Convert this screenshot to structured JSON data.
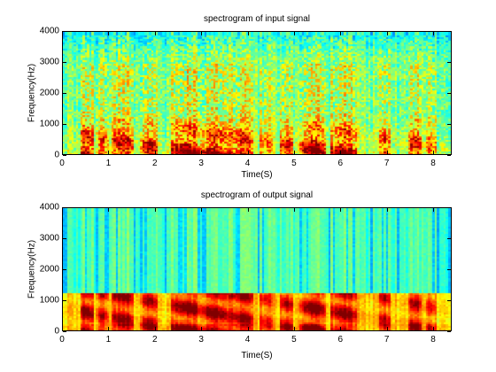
{
  "chart_data": [
    {
      "type": "heatmap",
      "title": "spectrogram of input signal",
      "xlabel": "Time(S)",
      "ylabel": "Frequency(Hz)",
      "xlim": [
        0,
        8.4
      ],
      "ylim": [
        0,
        4000
      ],
      "xticks": [
        "0",
        "1",
        "2",
        "3",
        "4",
        "5",
        "6",
        "7",
        "8"
      ],
      "yticks": [
        "0",
        "1000",
        "2000",
        "3000",
        "4000"
      ],
      "colormap": "jet",
      "grid": false
    },
    {
      "type": "heatmap",
      "title": "spectrogram of output signal",
      "xlabel": "Time(S)",
      "ylabel": "Frequency(Hz)",
      "xlim": [
        0,
        8.4
      ],
      "ylim": [
        0,
        4000
      ],
      "xticks": [
        "0",
        "1",
        "2",
        "3",
        "4",
        "5",
        "6",
        "7",
        "8"
      ],
      "yticks": [
        "0",
        "1000",
        "2000",
        "3000",
        "4000"
      ],
      "colormap": "jet",
      "grid": false
    }
  ]
}
